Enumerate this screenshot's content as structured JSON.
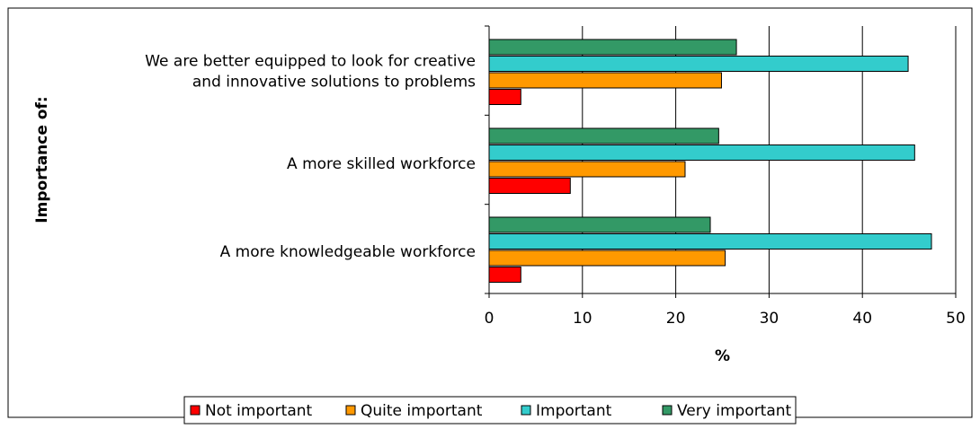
{
  "chart_data": {
    "type": "bar",
    "orientation": "horizontal",
    "categories": [
      "We are better equipped to look for creative and innovative solutions to problems",
      "A more skilled workforce",
      "A more knowledgeable workforce"
    ],
    "category_label_lines": [
      [
        "We are better equipped to look for creative",
        "and innovative solutions to problems"
      ],
      [
        "A more skilled workforce"
      ],
      [
        "A more knowledgeable workforce"
      ]
    ],
    "series": [
      {
        "name": "Not important",
        "color": "#FF0000",
        "values": [
          3.4,
          8.7,
          3.4
        ]
      },
      {
        "name": "Quite important",
        "color": "#FF9900",
        "values": [
          24.9,
          21.0,
          25.3
        ]
      },
      {
        "name": "Important",
        "color": "#33CCCC",
        "values": [
          44.9,
          45.6,
          47.4
        ]
      },
      {
        "name": "Very important",
        "color": "#339966",
        "values": [
          26.5,
          24.6,
          23.7
        ]
      }
    ],
    "xlabel": "%",
    "ylabel": "Importance of:",
    "xlim": [
      0,
      50
    ],
    "xticks": [
      "0",
      "10",
      "20",
      "30",
      "40",
      "50"
    ],
    "grid": true,
    "legend_position": "bottom"
  }
}
